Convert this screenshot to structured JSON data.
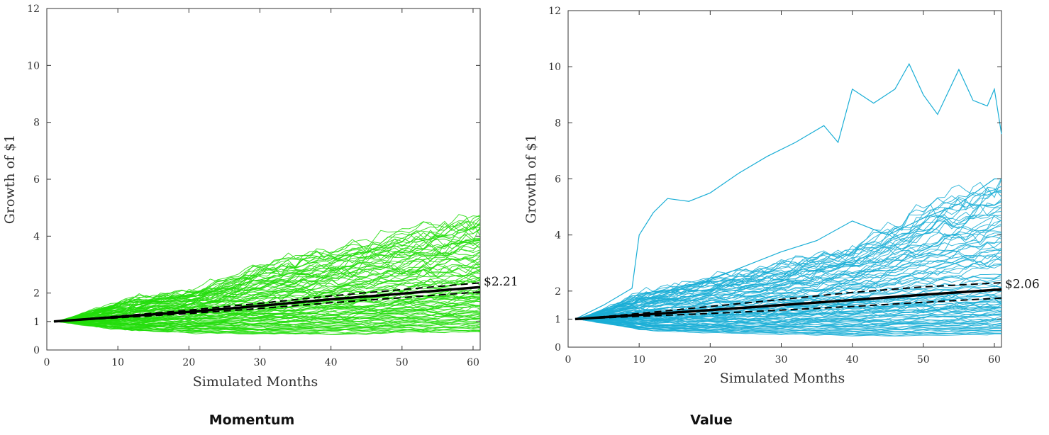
{
  "captions": [
    "Momentum",
    "Value"
  ],
  "colors": {
    "momentum": "#22dd0a",
    "value": "#1aaed6",
    "median": "#000000",
    "axis": "#333333"
  },
  "chart_data": [
    {
      "type": "line",
      "title": "",
      "xlabel": "Simulated Months",
      "ylabel": "Growth of $1",
      "xlim": [
        0,
        61
      ],
      "ylim": [
        0,
        12
      ],
      "xticks": [
        0,
        10,
        20,
        30,
        40,
        50,
        60
      ],
      "yticks": [
        0,
        1,
        2,
        4,
        6,
        8,
        10,
        12
      ],
      "grid": false,
      "end_label": "$2.21",
      "path_count": 100,
      "path_color": "#22dd0a",
      "median": {
        "x": [
          1,
          10,
          20,
          30,
          40,
          50,
          61
        ],
        "y": [
          1.0,
          1.16,
          1.34,
          1.55,
          1.78,
          1.98,
          2.21
        ]
      },
      "upper_band": {
        "x": [
          1,
          10,
          20,
          30,
          40,
          50,
          61
        ],
        "y": [
          1.0,
          1.19,
          1.4,
          1.64,
          1.9,
          2.12,
          2.36
        ]
      },
      "lower_band": {
        "x": [
          1,
          10,
          20,
          30,
          40,
          50,
          61
        ],
        "y": [
          1.0,
          1.13,
          1.28,
          1.46,
          1.66,
          1.84,
          2.04
        ]
      },
      "paths_envelope": {
        "x": [
          1,
          10,
          20,
          30,
          40,
          50,
          61
        ],
        "y_max": [
          1.0,
          1.75,
          2.1,
          3.0,
          3.5,
          4.2,
          4.8
        ],
        "y_min": [
          1.0,
          0.7,
          0.6,
          0.55,
          0.55,
          0.6,
          0.6
        ]
      }
    },
    {
      "type": "line",
      "title": "",
      "xlabel": "Simulated Months",
      "ylabel": "Growth of $1",
      "xlim": [
        0,
        61
      ],
      "ylim": [
        0,
        12
      ],
      "xticks": [
        0,
        10,
        20,
        30,
        40,
        50,
        60
      ],
      "yticks": [
        0,
        1,
        2,
        4,
        6,
        8,
        10,
        12
      ],
      "grid": false,
      "end_label": "$2.06",
      "path_count": 100,
      "path_color": "#1aaed6",
      "median": {
        "x": [
          1,
          10,
          20,
          30,
          40,
          50,
          61
        ],
        "y": [
          1.0,
          1.15,
          1.32,
          1.5,
          1.68,
          1.87,
          2.06
        ]
      },
      "upper_band": {
        "x": [
          1,
          10,
          20,
          30,
          40,
          50,
          61
        ],
        "y": [
          1.0,
          1.2,
          1.45,
          1.7,
          1.95,
          2.15,
          2.3
        ]
      },
      "lower_band": {
        "x": [
          1,
          10,
          20,
          30,
          40,
          50,
          61
        ],
        "y": [
          1.0,
          1.1,
          1.2,
          1.32,
          1.45,
          1.6,
          1.75
        ]
      },
      "paths_envelope": {
        "x": [
          1,
          10,
          20,
          30,
          40,
          50,
          61
        ],
        "y_max": [
          1.0,
          2.0,
          2.5,
          3.0,
          3.6,
          5.0,
          6.0
        ],
        "y_min": [
          1.0,
          0.6,
          0.5,
          0.45,
          0.4,
          0.4,
          0.45
        ]
      },
      "outlier_paths": [
        {
          "x": [
            1,
            5,
            9,
            10,
            12,
            14,
            17,
            20,
            24,
            28,
            32,
            36,
            38,
            40,
            43,
            46,
            48,
            50,
            52,
            55,
            57,
            59,
            60,
            61
          ],
          "y": [
            1.0,
            1.5,
            2.1,
            4.0,
            4.8,
            5.3,
            5.2,
            5.5,
            6.2,
            6.8,
            7.3,
            7.9,
            7.3,
            9.2,
            8.7,
            9.2,
            10.1,
            9.0,
            8.3,
            9.9,
            8.8,
            8.6,
            9.2,
            7.6
          ]
        },
        {
          "x": [
            1,
            5,
            10,
            15,
            20,
            25,
            30,
            35,
            40,
            45,
            50,
            55,
            60,
            61
          ],
          "y": [
            1.0,
            1.3,
            1.6,
            2.0,
            2.4,
            2.9,
            3.4,
            3.8,
            4.5,
            4.0,
            4.6,
            5.1,
            6.0,
            6.0
          ]
        }
      ]
    }
  ]
}
